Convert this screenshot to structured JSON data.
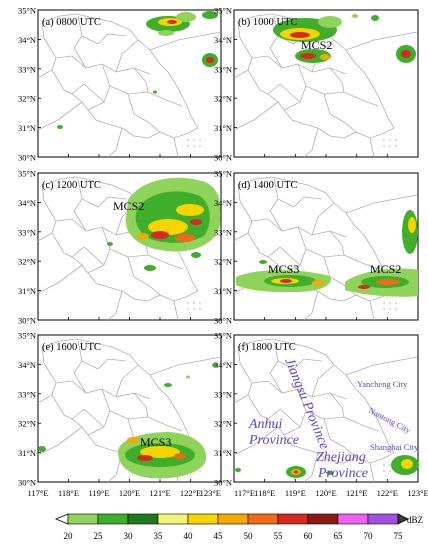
{
  "figure": {
    "lat_ticks": [
      "35°N",
      "34°N",
      "33°N",
      "32°N",
      "31°N",
      "30°N"
    ],
    "lon_ticks": [
      "117°E",
      "118°E",
      "119°E",
      "120°E",
      "121°E",
      "122°E",
      "123°E"
    ],
    "extent": {
      "lon": [
        117,
        123
      ],
      "lat": [
        30,
        35
      ]
    },
    "background": "#ffffff",
    "boundary_color": "#b0b0b0"
  },
  "panels": [
    {
      "label": "(a) 0800 UTC",
      "mcs": []
    },
    {
      "label": "(b) 1000 UTC",
      "mcs": [
        {
          "text": "MCS2"
        }
      ]
    },
    {
      "label": "(c) 1200 UTC",
      "mcs": [
        {
          "text": "MCS2"
        }
      ]
    },
    {
      "label": "(d) 1400 UTC",
      "mcs": [
        {
          "text": "MCS3"
        },
        {
          "text": "MCS2"
        }
      ]
    },
    {
      "label": "(e) 1600 UTC",
      "mcs": [
        {
          "text": "MCS3"
        }
      ]
    },
    {
      "label": "(f) 1800 UTC",
      "mcs": []
    }
  ],
  "annotations_f": {
    "provinces": [
      "Jiangsu Province",
      "Anhui Province",
      "Zhejiang Province"
    ],
    "anhui_line1": "Anhui",
    "anhui_line2": "Province",
    "zhejiang_line1": "Zhejiang",
    "zhejiang_line2": "Province",
    "cities": [
      "Yancheng City",
      "Nantong City",
      "Shanghai City"
    ],
    "color": "#5a46c8"
  },
  "colorbar": {
    "unit": "dBZ",
    "ticks": [
      "20",
      "25",
      "30",
      "35",
      "40",
      "45",
      "50",
      "55",
      "60",
      "65",
      "70",
      "75"
    ],
    "colors": [
      "#8fd35a",
      "#3fae2a",
      "#1e7a1a",
      "#f4f47a",
      "#f5d400",
      "#f5a800",
      "#f26a18",
      "#d42a20",
      "#8c1a14",
      "#f060f0",
      "#a050e0"
    ]
  }
}
